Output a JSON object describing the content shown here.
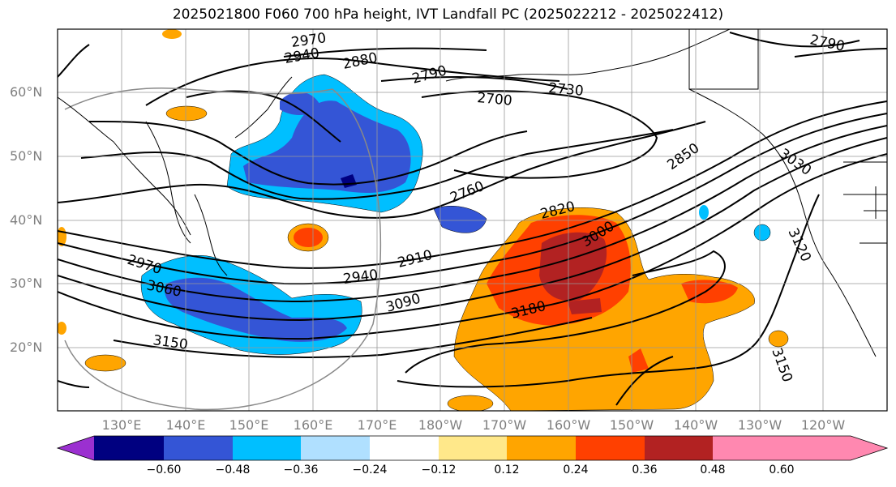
{
  "title": "2025021800 F060 700 hPa height, IVT Landfall PC (2025022212 - 2025022412)",
  "lat_labels": [
    "60°N",
    "50°N",
    "40°N",
    "30°N",
    "20°N"
  ],
  "lon_labels": [
    "130°E",
    "140°E",
    "150°E",
    "160°E",
    "170°E",
    "180°W",
    "170°W",
    "160°W",
    "150°W",
    "140°W",
    "130°W",
    "120°W"
  ],
  "colorbar": {
    "ticks": [
      "−0.60",
      "−0.48",
      "−0.36",
      "−0.24",
      "−0.12",
      "0.12",
      "0.24",
      "0.36",
      "0.48",
      "0.60"
    ],
    "colors": [
      "#9b30d0",
      "#000080",
      "#3455d6",
      "#00bfff",
      "#b0e0ff",
      "#ffffff",
      "#ffe88a",
      "#ffa500",
      "#ff4000",
      "#b22222",
      "#ff88b0"
    ]
  },
  "contour_labels": [
    "2970",
    "2940",
    "2880",
    "2790",
    "2730",
    "2700",
    "2790",
    "2760",
    "2850",
    "2820",
    "3000",
    "2970",
    "3060",
    "2940",
    "2910",
    "3090",
    "3180",
    "3150",
    "3150",
    "3120",
    "3030"
  ]
}
